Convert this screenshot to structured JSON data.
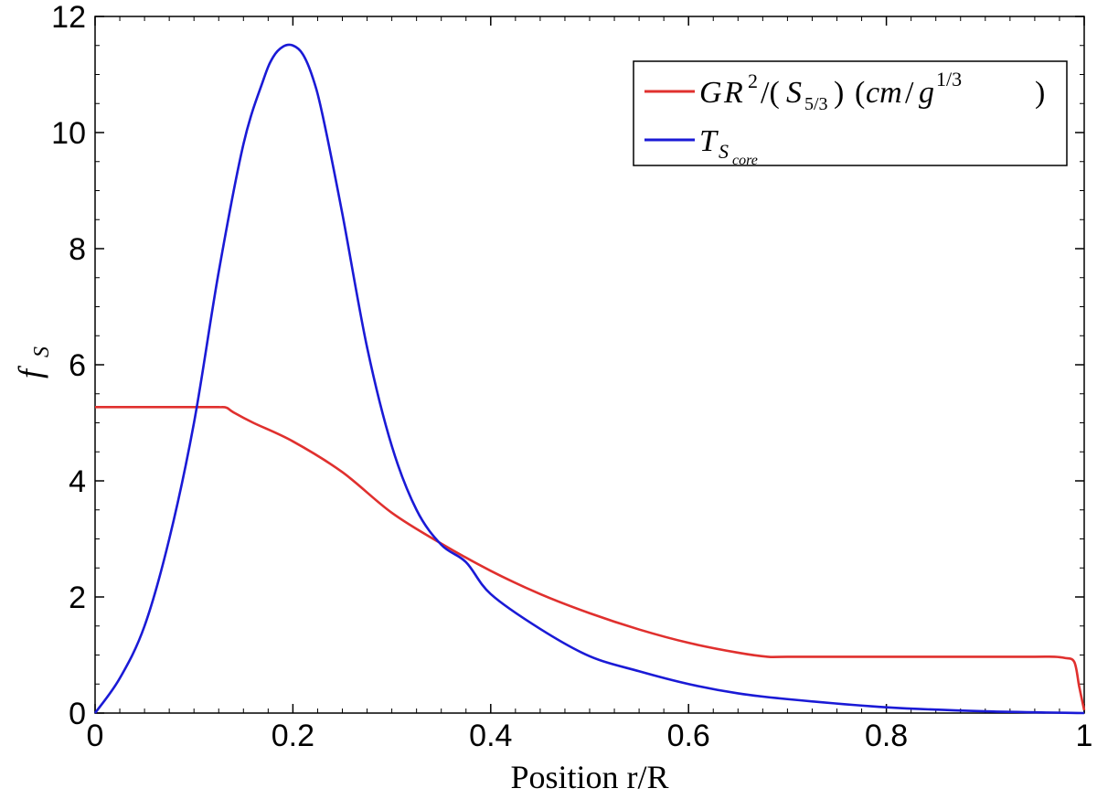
{
  "chart_data": {
    "type": "line",
    "xlabel": "Position r/R",
    "ylabel": "f_S",
    "xlim": [
      0,
      1
    ],
    "ylim": [
      0,
      12
    ],
    "xticks": [
      0,
      0.2,
      0.4,
      0.6,
      0.8,
      1
    ],
    "xtick_labels": [
      "0",
      "0.2",
      "0.4",
      "0.6",
      "0.8",
      "1"
    ],
    "yticks": [
      0,
      2,
      4,
      6,
      8,
      10,
      12
    ],
    "ytick_labels": [
      "0",
      "2",
      "4",
      "6",
      "8",
      "10",
      "12"
    ],
    "grid": false,
    "legend_position": "top-right",
    "series": [
      {
        "name": "GR^2/(S_{5/3}) (cm/g^{1/3})",
        "color": "#e0302e",
        "x": [
          0,
          0.05,
          0.1,
          0.125,
          0.133,
          0.14,
          0.16,
          0.2,
          0.25,
          0.3,
          0.35,
          0.4,
          0.45,
          0.5,
          0.55,
          0.6,
          0.65,
          0.68,
          0.7,
          0.8,
          0.9,
          0.95,
          0.97,
          0.98,
          0.99,
          0.995,
          1.0
        ],
        "y": [
          5.27,
          5.27,
          5.27,
          5.27,
          5.26,
          5.18,
          5.0,
          4.68,
          4.15,
          3.45,
          2.92,
          2.45,
          2.05,
          1.72,
          1.44,
          1.21,
          1.04,
          0.97,
          0.97,
          0.97,
          0.97,
          0.97,
          0.97,
          0.95,
          0.88,
          0.45,
          0.05
        ]
      },
      {
        "name": "T_{S_core}",
        "color": "#1a1ad6",
        "x": [
          0,
          0.025,
          0.05,
          0.075,
          0.1,
          0.125,
          0.15,
          0.17,
          0.18,
          0.19,
          0.2,
          0.21,
          0.22,
          0.23,
          0.25,
          0.275,
          0.3,
          0.325,
          0.35,
          0.375,
          0.4,
          0.45,
          0.5,
          0.55,
          0.6,
          0.65,
          0.7,
          0.8,
          0.9,
          1.0
        ],
        "y": [
          0,
          0.6,
          1.5,
          3.0,
          5.0,
          7.6,
          9.8,
          10.9,
          11.3,
          11.48,
          11.5,
          11.35,
          10.95,
          10.3,
          8.6,
          6.3,
          4.6,
          3.5,
          2.9,
          2.6,
          2.05,
          1.45,
          0.98,
          0.72,
          0.5,
          0.34,
          0.24,
          0.1,
          0.03,
          0
        ]
      }
    ]
  },
  "legend": {
    "red": {
      "G": "G",
      "R": "R",
      "sup2": "2",
      "slash1": "/(",
      "S": "S",
      "sub": "5/3",
      "paren": ")",
      "units_open": "(",
      "cm": "cm",
      "slash2": "/",
      "g": "g",
      "sup13": "1/3",
      "units_close": ")"
    },
    "blue": {
      "T": "T",
      "S": "S",
      "core": "core"
    }
  },
  "ylabel_parts": {
    "f": "f",
    "S": "S"
  }
}
